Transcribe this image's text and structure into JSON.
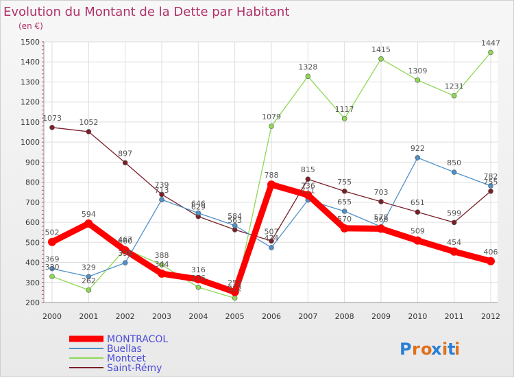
{
  "chart_data": {
    "type": "line",
    "title": "Evolution du Montant de la Dette par Habitant",
    "subtitle": "(en €)",
    "x": [
      "2000",
      "2001",
      "2002",
      "2003",
      "2004",
      "2005",
      "2006",
      "2007",
      "2008",
      "2009",
      "2010",
      "2011",
      "2012"
    ],
    "ylim": [
      200,
      1500
    ],
    "yticks": [
      200,
      300,
      400,
      500,
      600,
      700,
      800,
      900,
      1000,
      1100,
      1200,
      1300,
      1400,
      1500
    ],
    "grid": true,
    "legend_position": "bottom-left",
    "series": [
      {
        "name": "MONTRACOL",
        "color": "#ff0000",
        "values": [
          502,
          594,
          460,
          344,
          316,
          252,
          788,
          736,
          570,
          568,
          509,
          454,
          406
        ]
      },
      {
        "name": "Buellas",
        "color": "#4f90c8",
        "values": [
          369,
          329,
          398,
          713,
          646,
          584,
          474,
          711,
          655,
          578,
          922,
          850,
          782
        ]
      },
      {
        "name": "Montcet",
        "color": "#8ed854",
        "values": [
          330,
          262,
          467,
          388,
          276,
          222,
          1079,
          1328,
          1117,
          1415,
          1309,
          1231,
          1447
        ]
      },
      {
        "name": "Saint-Rémy",
        "color": "#7a1f28",
        "values": [
          1073,
          1052,
          897,
          739,
          629,
          563,
          507,
          815,
          755,
          703,
          651,
          599,
          755
        ]
      }
    ]
  },
  "logo": {
    "text": "Proxiti"
  }
}
